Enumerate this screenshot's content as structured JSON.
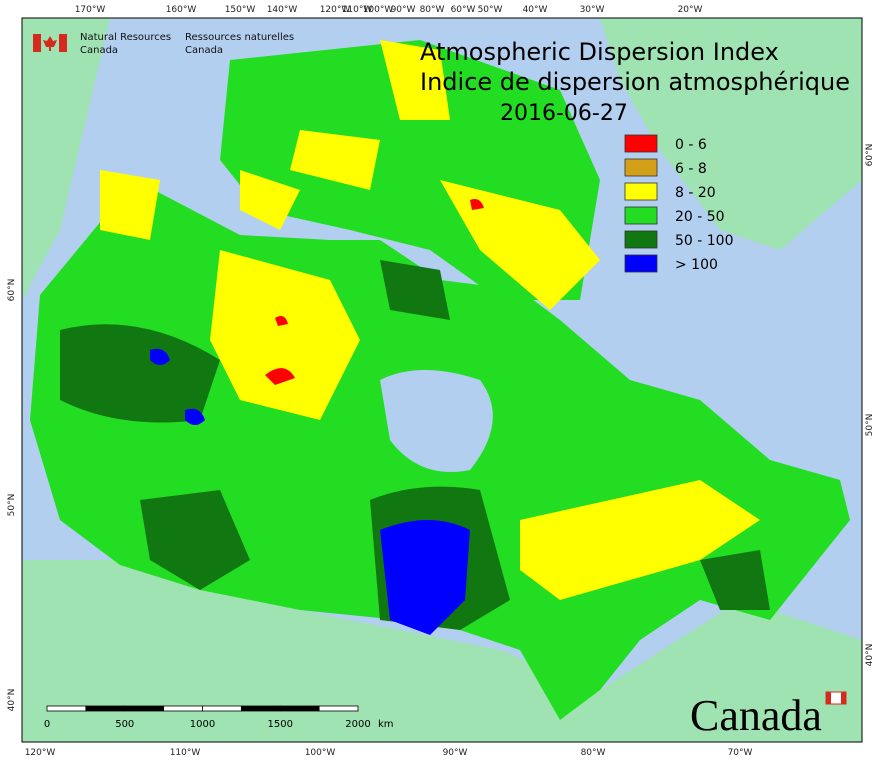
{
  "header": {
    "title": "Atmospheric Dispersion Index",
    "title_fr": "Indice de dispersion atmosphérique",
    "date": "2016-06-27"
  },
  "logo": {
    "line1_en": "Natural Resources",
    "line2_en": "Canada",
    "line1_fr": "Ressources naturelles",
    "line2_fr": "Canada"
  },
  "legend": {
    "items": [
      {
        "label": "0 - 6",
        "color": "#ff0000"
      },
      {
        "label": "6 - 8",
        "color": "#d4a017"
      },
      {
        "label": "8 - 20",
        "color": "#ffff00"
      },
      {
        "label": "20 - 50",
        "color": "#22dd22"
      },
      {
        "label": "50 - 100",
        "color": "#117711"
      },
      {
        "label": "> 100",
        "color": "#0000ff"
      }
    ]
  },
  "graticule": {
    "top": [
      "170°W",
      "160°W",
      "150°W",
      "140°W",
      "120°W",
      "110°W",
      "100°W",
      "90°W",
      "80°W",
      "60°W",
      "50°W",
      "40°W",
      "30°W",
      "20°W"
    ],
    "bottom": [
      "120°W",
      "110°W",
      "100°W",
      "90°W",
      "80°W",
      "70°W"
    ],
    "left": [
      "60°N",
      "50°N",
      "40°N"
    ],
    "right": [
      "60°N",
      "50°N",
      "40°N"
    ]
  },
  "scale_bar": {
    "labels": [
      "0",
      "500",
      "1000",
      "1500",
      "2000"
    ],
    "unit": "km"
  },
  "wordmark": "Canada"
}
